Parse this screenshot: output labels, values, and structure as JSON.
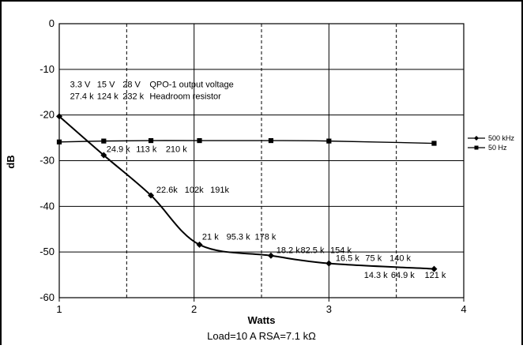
{
  "chart_data": {
    "type": "line",
    "xlabel": "Watts",
    "ylabel": "dB",
    "subtitle": "Load=10 A   RSA=7.1 kΩ",
    "xlim": [
      1,
      4
    ],
    "ylim": [
      -60,
      0
    ],
    "xticks": [
      "1",
      "2",
      "3",
      "4"
    ],
    "yticks": [
      "0",
      "-10",
      "-20",
      "-30",
      "-40",
      "-50",
      "-60"
    ],
    "grid": {
      "horizontal": "solid",
      "vertical_minor": "dashed"
    },
    "legend_position": "right",
    "series": [
      {
        "name": "500 kHz",
        "marker": "diamond",
        "x": [
          1.0,
          1.33,
          1.68,
          2.04,
          2.57,
          3.0,
          3.78
        ],
        "y": [
          -20.3,
          -28.8,
          -37.6,
          -48.4,
          -50.8,
          -52.5,
          -53.7
        ]
      },
      {
        "name": "50 Hz",
        "marker": "square",
        "x": [
          1.0,
          1.33,
          1.68,
          2.04,
          2.57,
          3.0,
          3.78
        ],
        "y": [
          -25.9,
          -25.7,
          -25.6,
          -25.6,
          -25.6,
          -25.7,
          -26.2
        ]
      }
    ],
    "annotations": [
      {
        "text": "3.3 V",
        "x": 1.08,
        "y": -13.9
      },
      {
        "text": "15 V",
        "x": 1.28,
        "y": -13.9
      },
      {
        "text": "28 V",
        "x": 1.47,
        "y": -13.9
      },
      {
        "text": "QPO-1 output voltage",
        "x": 1.67,
        "y": -13.9
      },
      {
        "text": "27.4 k",
        "x": 1.08,
        "y": -16.5
      },
      {
        "text": "124 k",
        "x": 1.28,
        "y": -16.5
      },
      {
        "text": "232 k",
        "x": 1.47,
        "y": -16.5
      },
      {
        "text": "Headroom resistor",
        "x": 1.67,
        "y": -16.5
      },
      {
        "text": "24.9 k",
        "x": 1.35,
        "y": -28.1
      },
      {
        "text": "113 k",
        "x": 1.57,
        "y": -28.1
      },
      {
        "text": "210 k",
        "x": 1.79,
        "y": -28.1
      },
      {
        "text": "22.6k",
        "x": 1.72,
        "y": -37.0
      },
      {
        "text": "102k",
        "x": 1.93,
        "y": -37.0
      },
      {
        "text": "191k",
        "x": 2.12,
        "y": -37.0
      },
      {
        "text": "21 k",
        "x": 2.06,
        "y": -47.3
      },
      {
        "text": "95.3 k",
        "x": 2.24,
        "y": -47.3
      },
      {
        "text": "178 k",
        "x": 2.45,
        "y": -47.3
      },
      {
        "text": "18.2 k",
        "x": 2.61,
        "y": -50.2
      },
      {
        "text": "82.5 k",
        "x": 2.79,
        "y": -50.2
      },
      {
        "text": "154 k",
        "x": 3.01,
        "y": -50.2
      },
      {
        "text": "16.5 k",
        "x": 3.05,
        "y": -52.0
      },
      {
        "text": "75 k",
        "x": 3.27,
        "y": -52.0
      },
      {
        "text": "140 k",
        "x": 3.45,
        "y": -52.0
      },
      {
        "text": "14.3 k",
        "x": 3.26,
        "y": -55.7
      },
      {
        "text": "64.9 k",
        "x": 3.46,
        "y": -55.7
      },
      {
        "text": "121 k",
        "x": 3.71,
        "y": -55.7
      }
    ]
  },
  "colors": {
    "line": "#000000",
    "grid": "#000000",
    "background": "#ffffff"
  }
}
